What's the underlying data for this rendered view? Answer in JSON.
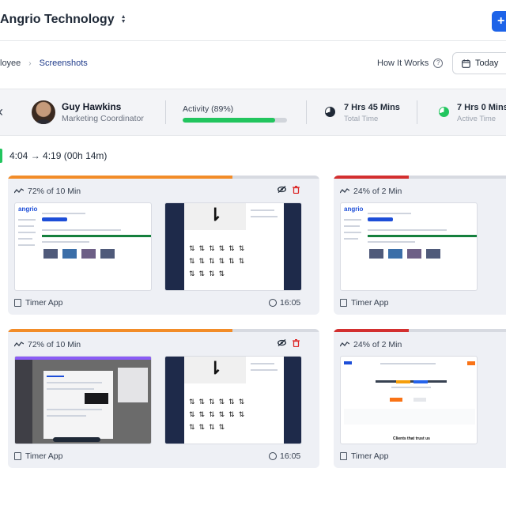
{
  "header": {
    "org_name": "Angrio Technology",
    "add_label": "+"
  },
  "breadcrumb": {
    "parent": "loyee",
    "current": "Screenshots"
  },
  "toolbar": {
    "how_it_works": "How It Works",
    "date_label": "Today"
  },
  "user": {
    "name": "Guy Hawkins",
    "role": "Marketing Coordinator"
  },
  "activity": {
    "label": "Activity (89%)",
    "percent": 89
  },
  "stats": [
    {
      "value": "7 Hrs 45 Mins",
      "label": "Total Time"
    },
    {
      "value": "7 Hrs 0 Mins",
      "label": "Active Time"
    }
  ],
  "time_range": "4:04 → 4:19 (00h 14m)",
  "cards": [
    {
      "activity": "72% of 10 Min",
      "activity_percent": 72,
      "bar_color": "#f28c28",
      "app": "Timer App",
      "time": "16:05",
      "thumbs": [
        "dashboard",
        "icons"
      ]
    },
    {
      "activity": "24% of 2 Min",
      "activity_percent": 24,
      "bar_color": "#d32f2f",
      "app": "Timer App",
      "time": "",
      "thumbs": [
        "dashboard"
      ]
    },
    {
      "activity": "72% of 10 Min",
      "activity_percent": 72,
      "bar_color": "#f28c28",
      "app": "Timer App",
      "time": "16:05",
      "thumbs": [
        "dark-app",
        "icons"
      ]
    },
    {
      "activity": "24% of 2 Min",
      "activity_percent": 24,
      "bar_color": "#d32f2f",
      "app": "Timer App",
      "time": "",
      "thumbs": [
        "website"
      ]
    }
  ],
  "thumb_text": {
    "logo": "angrio",
    "website_heading": "Clients that trust us"
  }
}
